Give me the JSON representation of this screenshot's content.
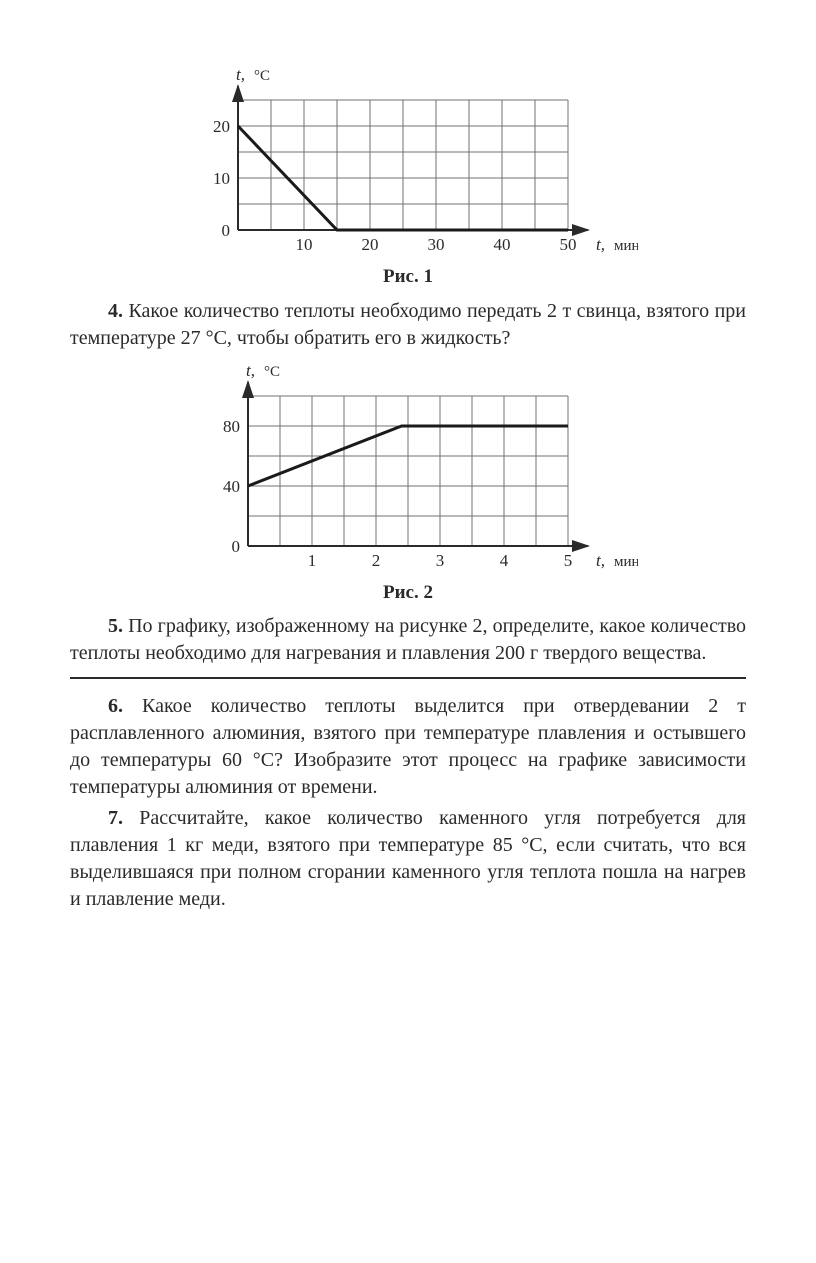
{
  "chart1": {
    "type": "line",
    "y_axis_label": "t, °C",
    "x_axis_label": "t, мин",
    "y_ticks": [
      0,
      10,
      20
    ],
    "x_ticks": [
      10,
      20,
      30,
      40,
      50
    ],
    "xlim": [
      0,
      50
    ],
    "ylim": [
      0,
      25
    ],
    "x_grid_step": 5,
    "y_grid_step": 5,
    "grid_color": "#707070",
    "axis_color": "#2a2a2a",
    "line_color": "#1a1a1a",
    "line_width": 3,
    "series": [
      {
        "points": [
          [
            0,
            20
          ],
          [
            15,
            0
          ],
          [
            50,
            0
          ]
        ]
      }
    ],
    "caption": "Рис. 1"
  },
  "problems": {
    "p4": {
      "num": "4.",
      "text": "Какое количество теплоты необходимо передать 2 т свинца, взятого при температуре 27 °С, чтобы обратить его в жидкость?"
    },
    "p5": {
      "num": "5.",
      "text": "По графику, изображенному на рисунке 2, определите, какое количество теплоты необходимо для нагревания и плавления 200 г твердого вещества."
    },
    "p6": {
      "num": "6.",
      "text": "Какое количество теплоты выделится при отвердевании 2 т расплавленного алюминия, взятого при температуре плавления и остывшего до температуры 60 °С? Изобразите этот процесс на графике зависимости температуры алюминия от времени."
    },
    "p7": {
      "num": "7.",
      "text": "Рассчитайте, какое количество каменного угля потребуется для плавления 1 кг меди, взятого при температуре 85 °С, если считать, что вся выделившаяся при полном сгорании каменного угля теплота пошла на нагрев и плавление меди."
    }
  },
  "chart2": {
    "type": "line",
    "y_axis_label": "t, °C",
    "x_axis_label": "t, мин",
    "y_ticks": [
      0,
      40,
      80
    ],
    "x_ticks": [
      1,
      2,
      3,
      4,
      5
    ],
    "xlim": [
      0,
      5
    ],
    "ylim": [
      0,
      100
    ],
    "x_grid_step": 0.5,
    "y_grid_step": 20,
    "grid_color": "#707070",
    "axis_color": "#2a2a2a",
    "line_color": "#1a1a1a",
    "line_width": 3,
    "series": [
      {
        "points": [
          [
            0,
            40
          ],
          [
            2.4,
            80
          ],
          [
            5,
            80
          ]
        ]
      }
    ],
    "caption": "Рис. 2"
  }
}
